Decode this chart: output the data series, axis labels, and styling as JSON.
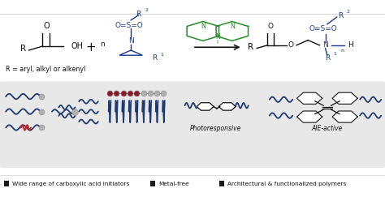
{
  "bg_color": "#ffffff",
  "bottom_panel_color": "#e8e8e8",
  "figure_width": 4.74,
  "figure_height": 2.48,
  "dpi": 100,
  "blue_dark": "#1a3a8b",
  "green_catalyst": "#2a8a2a",
  "blue_polymer": "#1e3a6e",
  "gray_sphere": "#b0b0b0",
  "maroon_sphere": "#8b1a2a",
  "red_segment": "#cc2222",
  "black_text": "#111111",
  "legend_items": [
    "Wide range of carboxylic acid initiators",
    "Metal-free",
    "Architectural & functionalized polymers"
  ]
}
